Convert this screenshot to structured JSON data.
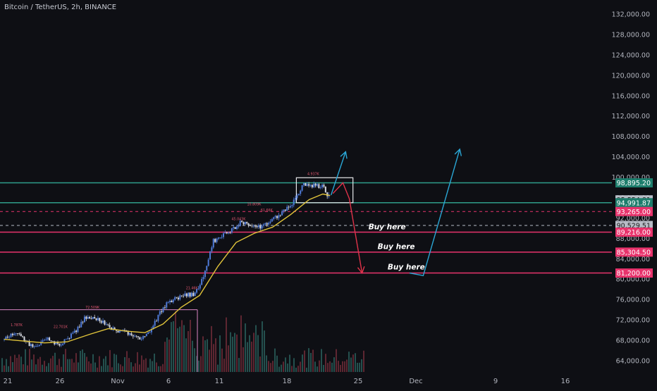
{
  "header": {
    "title": "Bitcoin / TetherUS, 2h, BINANCE"
  },
  "colors": {
    "background": "#0e0f14",
    "candle_up": "#4f7bd9",
    "candle_down": "#d6d9e0",
    "ma_line": "#e0c33a",
    "support_line": "#e8336c",
    "resistance_line": "#2f9e8a",
    "arrow_up": "#2aa7d6",
    "arrow_down": "#e0334a",
    "volume_up": "#285c58",
    "volume_down": "#6b2a36"
  },
  "chart_data": {
    "type": "candlestick",
    "title": "Bitcoin / TetherUS, 2h, BINANCE",
    "y_axis": {
      "position": "right",
      "range": [
        62000,
        134000
      ],
      "ticks": [
        "132,000.00",
        "128,000.00",
        "124,000.00",
        "120,000.00",
        "116,000.00",
        "112,000.00",
        "108,000.00",
        "104,000.00",
        "100,000.00",
        "96,000.00",
        "92,000.00",
        "88,000.00",
        "84,000.00",
        "80,000.00",
        "76,000.00",
        "72,000.00",
        "68,000.00",
        "64,000.00"
      ]
    },
    "x_axis": {
      "ticks": [
        "21",
        "26",
        "Nov",
        "6",
        "11",
        "18",
        "25",
        "Dec",
        "9",
        "16"
      ]
    },
    "grid": false,
    "price_path": [
      [
        20.6,
        68200
      ],
      [
        21.5,
        69300
      ],
      [
        22.5,
        68800
      ],
      [
        23.5,
        67000
      ],
      [
        24.5,
        67400
      ],
      [
        25.5,
        68200
      ],
      [
        26.5,
        67100
      ],
      [
        27.5,
        68300
      ],
      [
        28.5,
        70000
      ],
      [
        29.5,
        72500
      ],
      [
        30.5,
        72600
      ],
      [
        31.5,
        71500
      ],
      [
        32.5,
        70200
      ],
      [
        33.5,
        69800
      ],
      [
        34.5,
        68900
      ],
      [
        35.5,
        68400
      ],
      [
        36.5,
        69400
      ],
      [
        37.5,
        73000
      ],
      [
        38.5,
        75500
      ],
      [
        39.5,
        76200
      ],
      [
        40.5,
        76800
      ],
      [
        41.5,
        77200
      ],
      [
        42.5,
        81000
      ],
      [
        43.5,
        87500
      ],
      [
        44.5,
        88500
      ],
      [
        45.5,
        89500
      ],
      [
        46.5,
        91200
      ],
      [
        47.5,
        90500
      ],
      [
        48.5,
        90200
      ],
      [
        49.5,
        91200
      ],
      [
        50.5,
        92200
      ],
      [
        51.5,
        93800
      ],
      [
        52.5,
        95500
      ],
      [
        53.0,
        97600
      ],
      [
        53.5,
        98600
      ],
      [
        54.0,
        98600
      ],
      [
        54.5,
        98300
      ],
      [
        55.0,
        98200
      ],
      [
        55.5,
        98100
      ],
      [
        56.0,
        96500
      ],
      [
        56.3,
        95900
      ]
    ],
    "moving_average": [
      [
        20.6,
        68200
      ],
      [
        22.5,
        67900
      ],
      [
        25.0,
        67500
      ],
      [
        27.5,
        67700
      ],
      [
        30.0,
        69200
      ],
      [
        32.0,
        70300
      ],
      [
        34.0,
        69800
      ],
      [
        36.0,
        69500
      ],
      [
        38.0,
        71200
      ],
      [
        40.0,
        74500
      ],
      [
        42.0,
        76800
      ],
      [
        44.0,
        82500
      ],
      [
        46.0,
        87200
      ],
      [
        48.0,
        89000
      ],
      [
        50.0,
        90200
      ],
      [
        52.0,
        92700
      ],
      [
        54.0,
        95600
      ],
      [
        55.5,
        96700
      ],
      [
        56.3,
        96400
      ]
    ],
    "horizontal_levels": [
      {
        "price": 98895.2,
        "label": "98,895.20",
        "style": "solid",
        "color": "#2f9e8a"
      },
      {
        "price": 95554.81,
        "label": "95,554.81",
        "style": "label",
        "color": "#b7bcc6"
      },
      {
        "price": 94991.87,
        "label": "94,991.87",
        "style": "solid",
        "color": "#2f9e8a"
      },
      {
        "price": 93265.0,
        "label": "93,265.00",
        "style": "dashed",
        "color": "#e8336c"
      },
      {
        "price": 90529.51,
        "label": "90,529.51",
        "style": "dashed",
        "color": "#b7bcc6"
      },
      {
        "price": 89216.0,
        "label": "89,216.00",
        "style": "solid",
        "color": "#e8336c"
      },
      {
        "price": 85304.5,
        "label": "85,304.50",
        "style": "solid",
        "color": "#e8336c"
      },
      {
        "price": 81200.0,
        "label": "81,200.00",
        "style": "solid",
        "color": "#e8336c"
      }
    ],
    "annotations": [
      {
        "text": "Buy here",
        "day": 60.5,
        "price": 89800
      },
      {
        "text": "Buy here",
        "day": 61.5,
        "price": 85900
      },
      {
        "text": "Buy here",
        "day": 62.6,
        "price": 81900
      },
      {
        "text": "4.937K",
        "day": 53.8,
        "price": 100400
      },
      {
        "text": "10.809K",
        "day": 47.2,
        "price": 94500
      },
      {
        "text": "61.66K",
        "day": 48.7,
        "price": 93300
      },
      {
        "text": "45.043K",
        "day": 45.5,
        "price": 91600
      },
      {
        "text": "21.46K",
        "day": 40.5,
        "price": 78000
      },
      {
        "text": "72.509K",
        "day": 29.5,
        "price": 74200
      },
      {
        "text": "22.701K",
        "day": 26.0,
        "price": 70400
      },
      {
        "text": "1.787K",
        "day": 21.3,
        "price": 70800
      }
    ],
    "projection_box": {
      "x0": 52.6,
      "x1": 58.8,
      "p0": 94991.87,
      "p1": 99900
    },
    "arrows": [
      {
        "color": "#2aa7d6",
        "points": [
          [
            56.4,
            96500
          ],
          [
            58.0,
            105000
          ]
        ]
      },
      {
        "color": "#e0334a",
        "points": [
          [
            56.6,
            96800
          ],
          [
            57.7,
            98900
          ],
          [
            58.4,
            95800
          ],
          [
            59.8,
            81200
          ]
        ]
      },
      {
        "color": "#2aa7d6",
        "points": [
          [
            65.0,
            81200
          ],
          [
            66.5,
            80700
          ],
          [
            70.5,
            105500
          ]
        ]
      }
    ],
    "volume_note": "volume bars at bottom of chart"
  }
}
